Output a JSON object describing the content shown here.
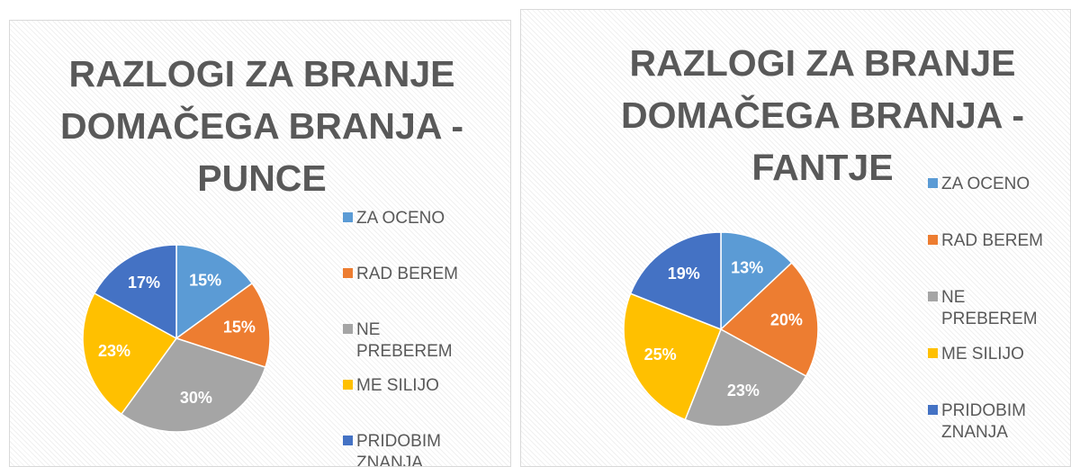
{
  "chart_data": [
    {
      "type": "pie",
      "title": "RAZLOGI ZA BRANJE DOMAČEGA BRANJA - PUNCE",
      "categories": [
        "ZA OCENO",
        "RAD BEREM",
        "NE PREBEREM",
        "ME SILIJO",
        "PRIDOBIM ZNANJA"
      ],
      "values": [
        15,
        15,
        30,
        23,
        17
      ],
      "value_labels": [
        "15%",
        "15%",
        "30%",
        "23%",
        "17%"
      ],
      "colors": [
        "#5b9bd5",
        "#ed7d31",
        "#a5a5a5",
        "#ffc000",
        "#4472c4"
      ],
      "legend": "right"
    },
    {
      "type": "pie",
      "title": "RAZLOGI ZA BRANJE DOMAČEGA BRANJA - FANTJE",
      "categories": [
        "ZA OCENO",
        "RAD BEREM",
        "NE PREBEREM",
        "ME SILIJO",
        "PRIDOBIM ZNANJA"
      ],
      "values": [
        13,
        20,
        23,
        25,
        19
      ],
      "value_labels": [
        "13%",
        "20%",
        "23%",
        "25%",
        "19%"
      ],
      "colors": [
        "#5b9bd5",
        "#ed7d31",
        "#a5a5a5",
        "#ffc000",
        "#4472c4"
      ],
      "legend": "right"
    }
  ]
}
